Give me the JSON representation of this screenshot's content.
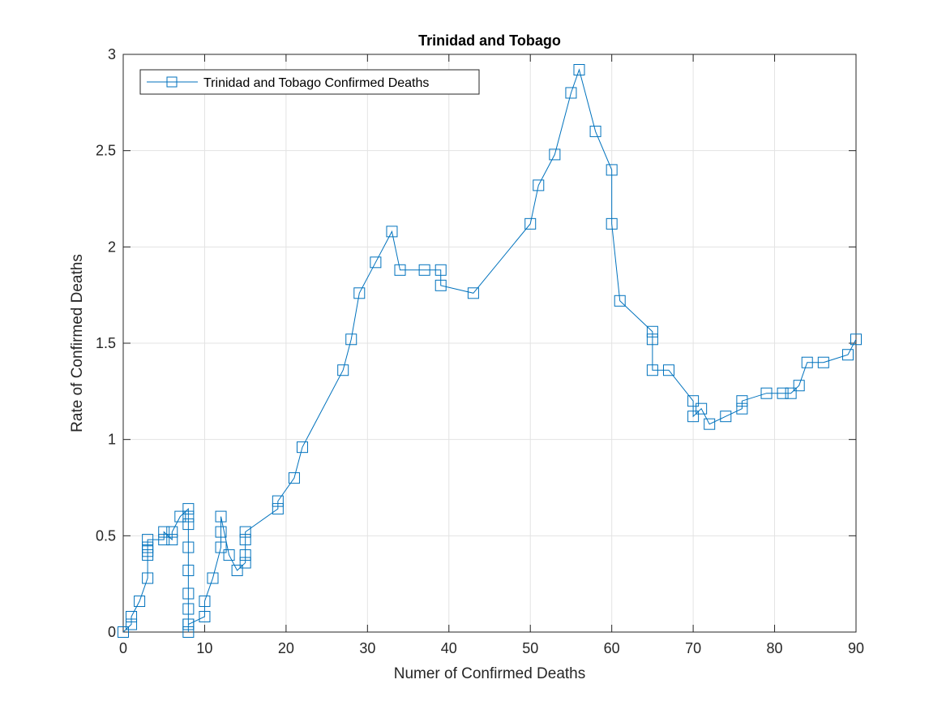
{
  "chart_data": {
    "type": "line",
    "title": "Trinidad and Tobago",
    "xlabel": "Numer of Confirmed Deaths",
    "ylabel": "Rate of Confirmed Deaths",
    "xlim": [
      0,
      90
    ],
    "ylim": [
      0,
      3
    ],
    "xticks": [
      0,
      10,
      20,
      30,
      40,
      50,
      60,
      70,
      80,
      90
    ],
    "yticks": [
      0,
      0.5,
      1,
      1.5,
      2,
      2.5,
      3
    ],
    "ytick_labels": [
      "0",
      "0.5",
      "1",
      "1.5",
      "2",
      "2.5",
      "3"
    ],
    "grid": true,
    "marker": "square",
    "color": "#0072BD",
    "legend": {
      "position": "top-left",
      "entries": [
        "Trinidad and Tobago Confirmed Deaths"
      ]
    },
    "series": [
      {
        "name": "Trinidad and Tobago Confirmed Deaths",
        "x": [
          0,
          1,
          1,
          2,
          3,
          3,
          3,
          3,
          3,
          5,
          5,
          6,
          6,
          7,
          8,
          8,
          8,
          8,
          8,
          8,
          8,
          8,
          8,
          8,
          10,
          10,
          11,
          12,
          12,
          12,
          13,
          14,
          15,
          15,
          15,
          15,
          19,
          19,
          21,
          22,
          27,
          28,
          29,
          31,
          33,
          34,
          37,
          39,
          39,
          43,
          50,
          51,
          53,
          55,
          56,
          58,
          60,
          60,
          61,
          65,
          65,
          65,
          67,
          70,
          70,
          71,
          72,
          74,
          76,
          76,
          79,
          81,
          82,
          83,
          84,
          86,
          89,
          90
        ],
        "y": [
          0,
          0.04,
          0.08,
          0.16,
          0.28,
          0.4,
          0.42,
          0.44,
          0.48,
          0.48,
          0.52,
          0.48,
          0.52,
          0.6,
          0.64,
          0.6,
          0.56,
          0.44,
          0.32,
          0.2,
          0.12,
          0.04,
          0,
          0.04,
          0.08,
          0.16,
          0.28,
          0.44,
          0.52,
          0.6,
          0.4,
          0.32,
          0.36,
          0.4,
          0.48,
          0.52,
          0.64,
          0.68,
          0.8,
          0.96,
          1.36,
          1.52,
          1.76,
          1.92,
          2.08,
          1.88,
          1.88,
          1.88,
          1.8,
          1.76,
          2.12,
          2.32,
          2.48,
          2.8,
          2.92,
          2.6,
          2.4,
          2.12,
          1.72,
          1.56,
          1.52,
          1.36,
          1.36,
          1.2,
          1.12,
          1.16,
          1.08,
          1.12,
          1.16,
          1.2,
          1.24,
          1.24,
          1.24,
          1.28,
          1.4,
          1.4,
          1.44,
          1.52
        ]
      }
    ]
  }
}
